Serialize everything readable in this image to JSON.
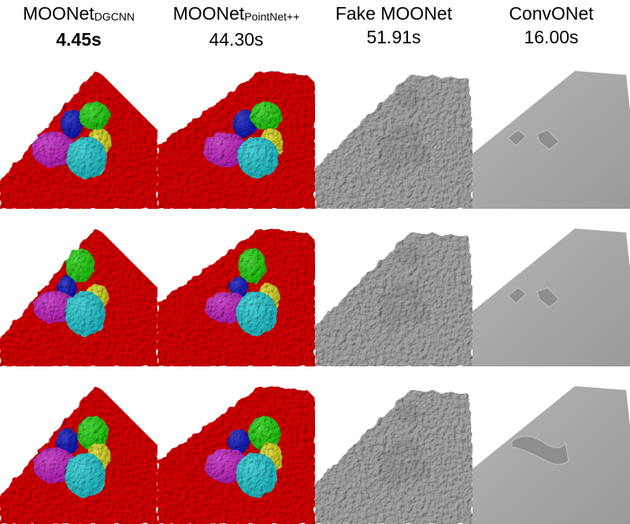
{
  "columns": [
    {
      "name_main": "MOONet",
      "name_sub": "DGCNN",
      "time": "4.45s",
      "best": true,
      "kind": "seg"
    },
    {
      "name_main": "MOONet",
      "name_sub": "PointNet++",
      "time": "44.30s",
      "best": false,
      "kind": "seg"
    },
    {
      "name_main": "Fake MOONet",
      "name_sub": "",
      "time": "51.91s",
      "best": false,
      "kind": "gray"
    },
    {
      "name_main": "ConvONet",
      "name_sub": "",
      "time": "16.00s",
      "best": false,
      "kind": "smooth"
    }
  ],
  "colors": {
    "ground": "#d90000",
    "blue": "#0a14c8",
    "green": "#22dd11",
    "yellow": "#e2e21a",
    "magenta": "#cc22cc",
    "cyan": "#22d4dd",
    "gray": "#a7a7a7"
  },
  "rows": 3
}
